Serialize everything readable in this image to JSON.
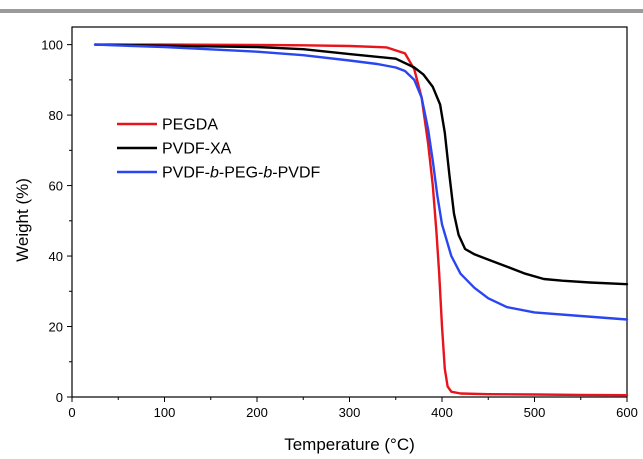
{
  "chart_data": {
    "type": "line",
    "xlabel": "Temperature (°C)",
    "ylabel": "Weight (%)",
    "xlim": [
      0,
      600
    ],
    "ylim": [
      0,
      105
    ],
    "x_ticks": [
      0,
      100,
      200,
      300,
      400,
      500,
      600
    ],
    "y_ticks": [
      0,
      20,
      40,
      60,
      80,
      100
    ],
    "grid": false,
    "legend_position": "left-center",
    "series": [
      {
        "name": "PEGDA",
        "color": "#e8141c",
        "legend_parts": [
          {
            "text": "PEGDA",
            "italic": false
          }
        ],
        "points": [
          [
            25,
            100
          ],
          [
            100,
            100
          ],
          [
            200,
            99.9
          ],
          [
            250,
            99.8
          ],
          [
            300,
            99.6
          ],
          [
            340,
            99.2
          ],
          [
            360,
            97.5
          ],
          [
            370,
            93
          ],
          [
            378,
            85
          ],
          [
            385,
            72
          ],
          [
            390,
            60
          ],
          [
            394,
            47
          ],
          [
            397,
            35
          ],
          [
            400,
            20
          ],
          [
            403,
            8
          ],
          [
            406,
            3
          ],
          [
            410,
            1.5
          ],
          [
            420,
            1
          ],
          [
            450,
            0.8
          ],
          [
            500,
            0.7
          ],
          [
            550,
            0.6
          ],
          [
            600,
            0.5
          ]
        ]
      },
      {
        "name": "PVDF-XA",
        "color": "#000000",
        "legend_parts": [
          {
            "text": "PVDF-XA",
            "italic": false
          }
        ],
        "points": [
          [
            25,
            100
          ],
          [
            100,
            99.7
          ],
          [
            200,
            99.3
          ],
          [
            250,
            98.7
          ],
          [
            300,
            97.3
          ],
          [
            350,
            96
          ],
          [
            370,
            93.5
          ],
          [
            380,
            91.5
          ],
          [
            390,
            88
          ],
          [
            398,
            83
          ],
          [
            403,
            75
          ],
          [
            408,
            63
          ],
          [
            413,
            52
          ],
          [
            418,
            46
          ],
          [
            425,
            42
          ],
          [
            435,
            40.5
          ],
          [
            450,
            39
          ],
          [
            470,
            37
          ],
          [
            490,
            35
          ],
          [
            510,
            33.5
          ],
          [
            530,
            33
          ],
          [
            560,
            32.5
          ],
          [
            600,
            32
          ]
        ]
      },
      {
        "name": "PVDF-b-PEG-b-PVDF",
        "color": "#2a46f0",
        "legend_parts": [
          {
            "text": "PVDF-",
            "italic": false
          },
          {
            "text": "b",
            "italic": true
          },
          {
            "text": "-PEG-",
            "italic": false
          },
          {
            "text": "b",
            "italic": true
          },
          {
            "text": "-PVDF",
            "italic": false
          }
        ],
        "points": [
          [
            25,
            100
          ],
          [
            100,
            99.3
          ],
          [
            200,
            98
          ],
          [
            250,
            97
          ],
          [
            300,
            95.5
          ],
          [
            330,
            94.5
          ],
          [
            350,
            93.5
          ],
          [
            360,
            92.5
          ],
          [
            370,
            90
          ],
          [
            378,
            85
          ],
          [
            385,
            76
          ],
          [
            390,
            67
          ],
          [
            395,
            57
          ],
          [
            400,
            49
          ],
          [
            410,
            40
          ],
          [
            420,
            35
          ],
          [
            435,
            31
          ],
          [
            450,
            28
          ],
          [
            470,
            25.5
          ],
          [
            500,
            24
          ],
          [
            550,
            23
          ],
          [
            600,
            22
          ]
        ]
      }
    ]
  }
}
